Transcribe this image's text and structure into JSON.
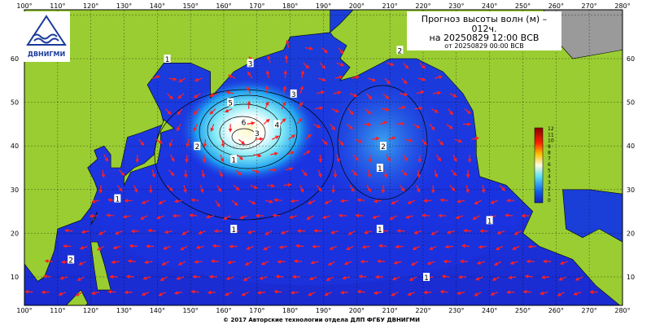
{
  "header": {
    "title_line1": "Прогноз высоты волн (м) –",
    "title_line2": "012ч.",
    "title_line3": "на 20250829 12:00 ВСВ",
    "title_line4": "от 20250829 00:00 ВСВ"
  },
  "logo": {
    "text": "ДВНИГМИ"
  },
  "footer": {
    "text": "© 2017 Авторские технологии отдела ДЛП ФГБУ ДВНИГМИ"
  },
  "axes": {
    "longitudes": [
      "100°",
      "110°",
      "120°",
      "130°",
      "140°",
      "150°",
      "160°",
      "170°",
      "180°",
      "190°",
      "200°",
      "210°",
      "220°",
      "230°",
      "240°",
      "250°",
      "260°",
      "270°",
      "280°"
    ],
    "latitudes": [
      "60",
      "50",
      "40",
      "30",
      "20",
      "10"
    ]
  },
  "colorbar": {
    "labels": [
      "12",
      "11",
      "10",
      "9",
      "8",
      "7",
      "6",
      "5",
      "4",
      "3",
      "2",
      "1",
      "0"
    ]
  },
  "contour_labels": [
    {
      "text": "3",
      "lon": 168,
      "lat": 59
    },
    {
      "text": "5",
      "lon": 162,
      "lat": 50
    },
    {
      "text": "6",
      "lon": 166,
      "lat": 45.5
    },
    {
      "text": "4",
      "lon": 176,
      "lat": 45
    },
    {
      "text": "3",
      "lon": 170,
      "lat": 43
    },
    {
      "text": "3",
      "lon": 181,
      "lat": 52
    },
    {
      "text": "2",
      "lon": 152,
      "lat": 40
    },
    {
      "text": "1",
      "lon": 163,
      "lat": 37
    },
    {
      "text": "2",
      "lon": 213,
      "lat": 62
    },
    {
      "text": "2",
      "lon": 208,
      "lat": 40
    },
    {
      "text": "1",
      "lon": 207,
      "lat": 35
    },
    {
      "text": "1",
      "lon": 128,
      "lat": 28
    },
    {
      "text": "1",
      "lon": 163,
      "lat": 21
    },
    {
      "text": "1",
      "lon": 207,
      "lat": 21
    },
    {
      "text": "1",
      "lon": 240,
      "lat": 23
    },
    {
      "text": "2",
      "lon": 114,
      "lat": 14
    },
    {
      "text": "1",
      "lon": 221,
      "lat": 10
    },
    {
      "text": "1",
      "lon": 143,
      "lat": 60
    }
  ]
}
